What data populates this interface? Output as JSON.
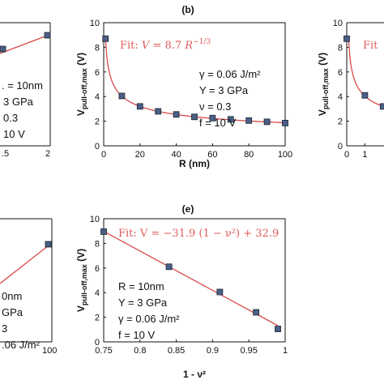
{
  "chart_data": [
    {
      "id": "a",
      "type": "scatter",
      "fit_style": "line",
      "visible": "partial (right edge only)",
      "x_tick_labels": [
        ".5",
        "2"
      ],
      "x": [
        1.5,
        2.0
      ],
      "y": [
        8.3,
        9.3
      ],
      "param_lines": [
        ". = 10nm",
        "3 GPa",
        "0.3",
        "10 V"
      ]
    },
    {
      "id": "b",
      "type": "scatter",
      "panel_label": "(b)",
      "xlabel": "R (nm)",
      "ylabel_main": "V",
      "ylabel_sub": "pull-off,max",
      "ylabel_unit": " (V)",
      "xlim": [
        0,
        100
      ],
      "ylim": [
        0,
        10
      ],
      "x_tick_labels": [
        "0",
        "20",
        "40",
        "60",
        "80",
        "100"
      ],
      "y_tick_labels": [
        "0",
        "2",
        "4",
        "6",
        "8",
        "10"
      ],
      "x": [
        1,
        10,
        20,
        30,
        40,
        50,
        60,
        70,
        80,
        90,
        100
      ],
      "y": [
        8.7,
        4.05,
        3.2,
        2.8,
        2.55,
        2.35,
        2.25,
        2.15,
        2.05,
        1.95,
        1.85
      ],
      "fit_label": "Fit: V = 8.7 R^{-1/3}",
      "fit_label_parts": [
        "Fit: ",
        "V",
        " = 8.7 ",
        "R",
        "−1/3"
      ],
      "param_lines": [
        "γ = 0.06 J/m²",
        "Y = 3 GPa",
        "ν = 0.3",
        "f = 10 V"
      ]
    },
    {
      "id": "c",
      "type": "scatter",
      "visible": "partial (left edge only)",
      "ylabel_main": "V",
      "ylabel_sub": "pull-off,max",
      "ylabel_unit": " (V)",
      "y_tick_labels": [
        "0",
        "2",
        "4",
        "6",
        "8",
        "10"
      ],
      "x_tick_labels": [
        "0",
        "1"
      ],
      "x": [
        0,
        1,
        2
      ],
      "y": [
        8.7,
        4.1,
        3.2
      ],
      "fit_label_visible": "Fit"
    },
    {
      "id": "d",
      "type": "scatter",
      "fit_style": "line",
      "visible": "partial (right edge only)",
      "x_tick_labels": [
        "100"
      ],
      "x": [
        100
      ],
      "y": [
        8.2
      ],
      "param_lines": [
        "0nm",
        "GPa",
        "3",
        ".06 J/m²"
      ]
    },
    {
      "id": "e",
      "type": "scatter",
      "panel_label": "(e)",
      "xlabel": "1 - ν²",
      "ylabel_main": "V",
      "ylabel_sub": "pull-off,max",
      "ylabel_unit": " (V)",
      "xlim": [
        0.75,
        1.0
      ],
      "ylim": [
        0,
        10
      ],
      "x_tick_labels": [
        "0.75",
        "0.8",
        "0.85",
        "0.9",
        "0.95",
        "1"
      ],
      "y_tick_labels": [
        "0",
        "2",
        "4",
        "6",
        "8",
        "10"
      ],
      "x": [
        0.75,
        0.84,
        0.91,
        0.96,
        0.99
      ],
      "y": [
        8.95,
        6.1,
        4.05,
        2.4,
        1.05
      ],
      "fit_label": "Fit: V = −31.9 (1 − ν²) + 32.9",
      "fit_slope": -31.9,
      "fit_intercept": 32.9,
      "param_lines": [
        "R = 10nm",
        "Y = 3 GPa",
        "γ = 0.06 J/m²",
        "f = 10 V"
      ]
    }
  ],
  "colors": {
    "marker_fill": "#4a5f86",
    "marker_edge": "#1d2533",
    "fit_line": "#d94a4a",
    "axis": "#111111"
  }
}
